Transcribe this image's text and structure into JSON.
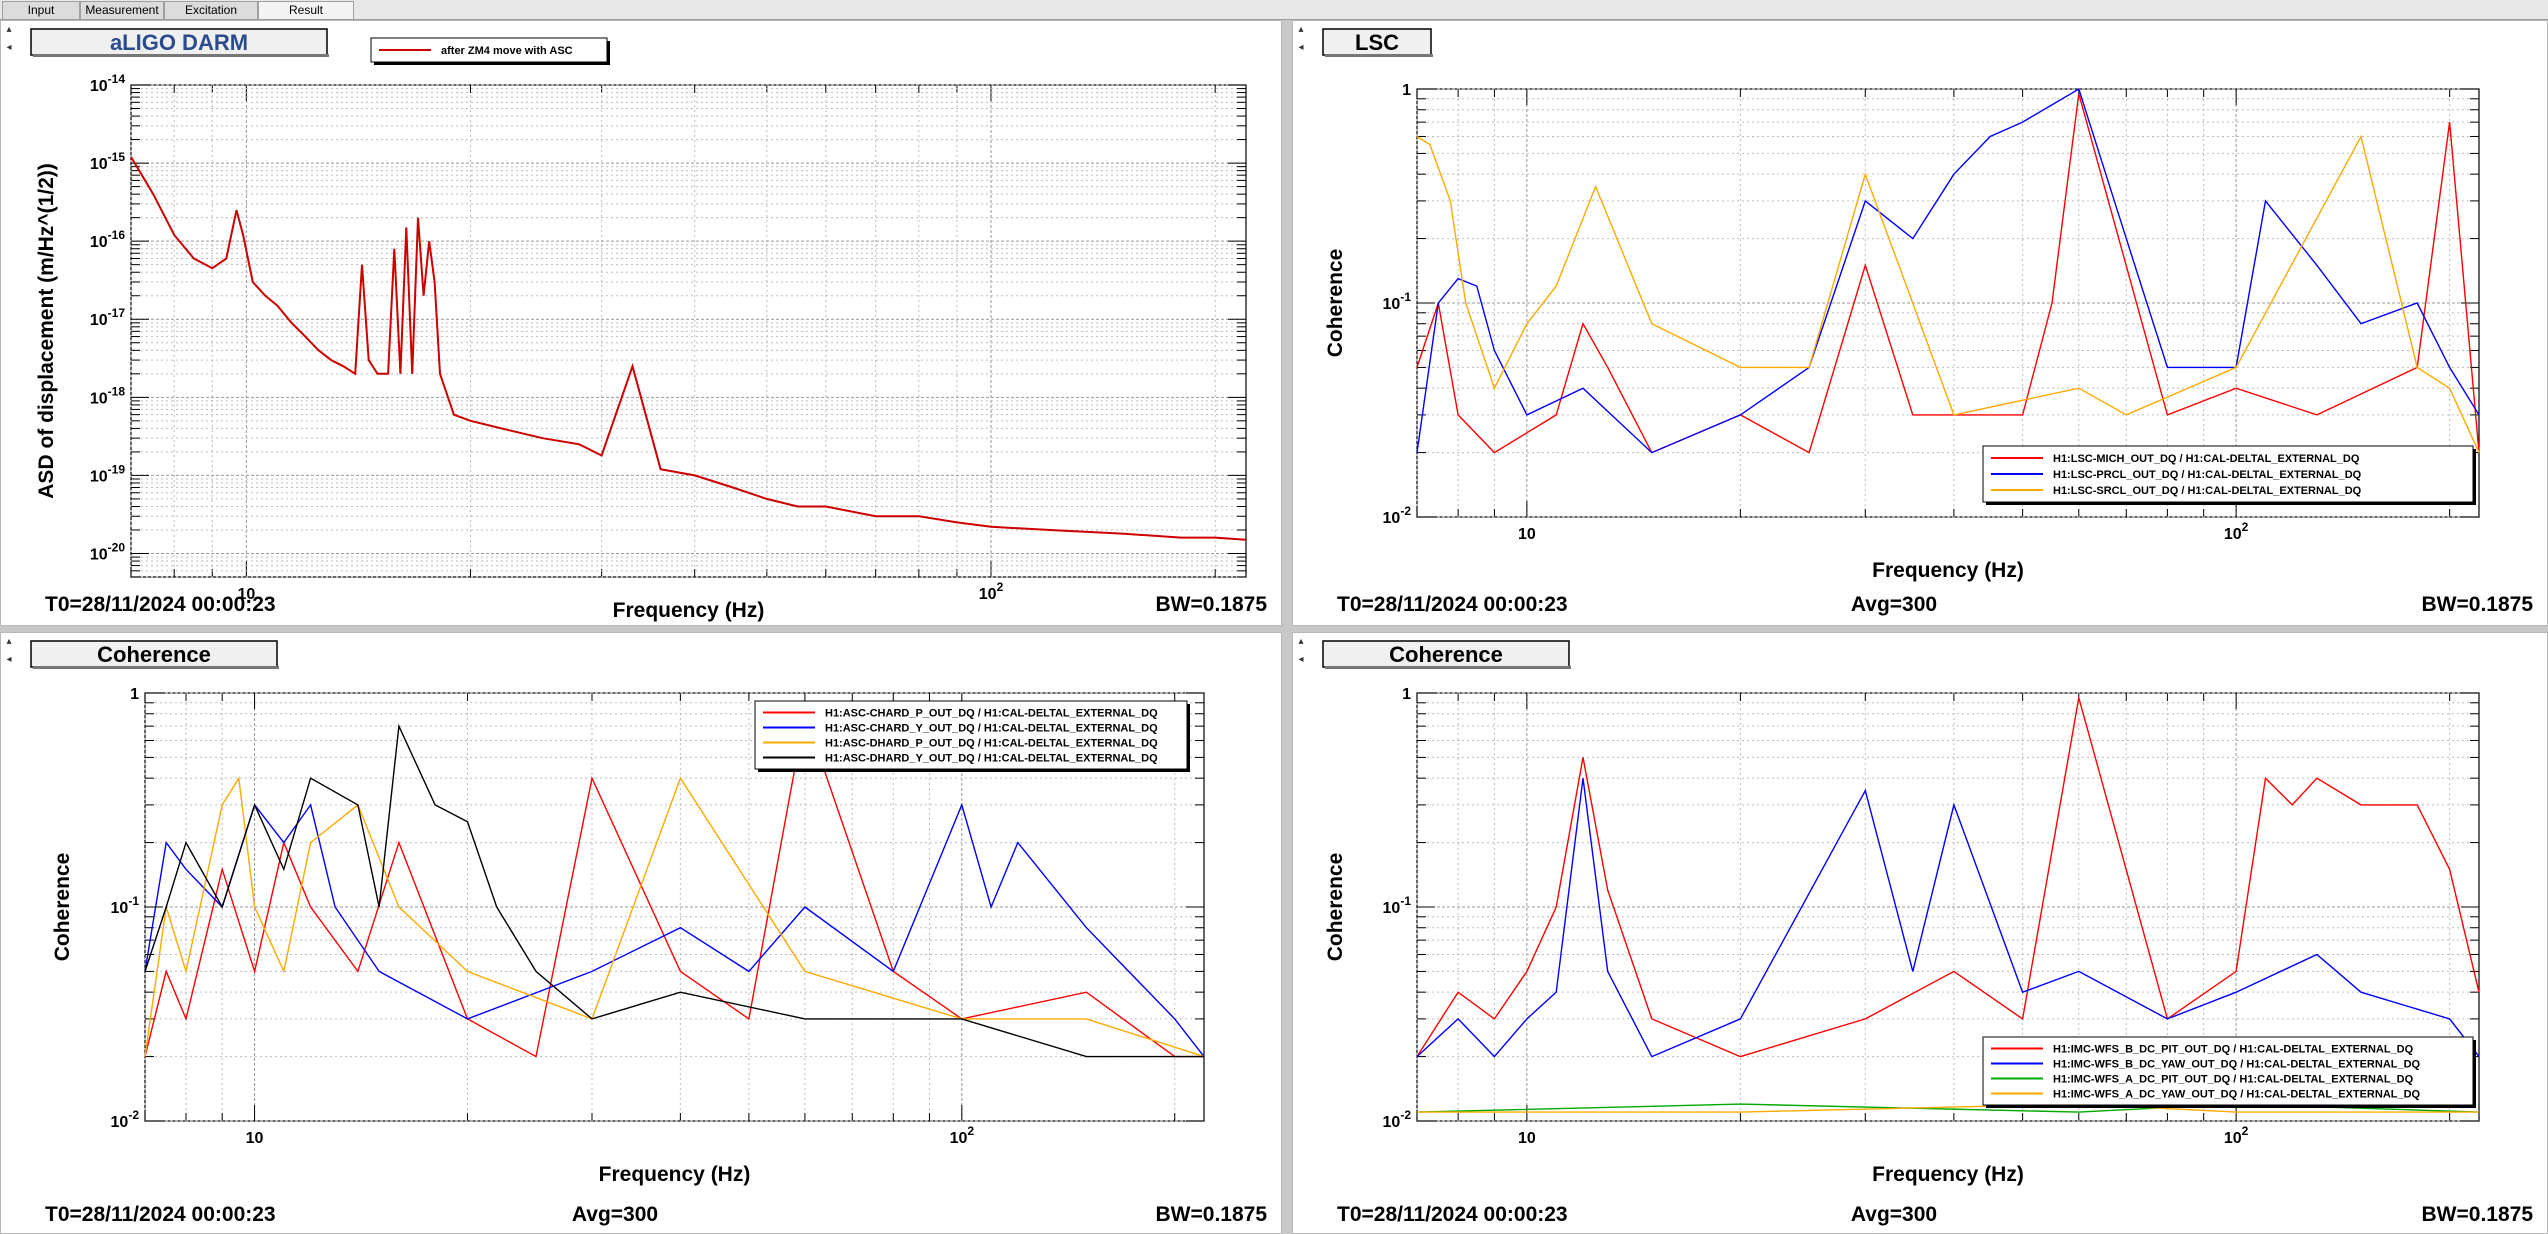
{
  "tabs": [
    {
      "label": "Input"
    },
    {
      "label": "Measurement"
    },
    {
      "label": "Excitation"
    },
    {
      "label": "Result"
    }
  ],
  "colors": {
    "red": "#ff0000",
    "darkred": "#cc0000",
    "blue": "#0000ff",
    "orange": "#ffaa00",
    "black": "#000000",
    "green": "#00aa00",
    "titleblue": "#2c4c8c"
  },
  "panels": [
    {
      "title": "aLIGO DARM",
      "footer": {
        "left": "T0=28/11/2024 00:00:23",
        "center": "",
        "right": "BW=0.1875"
      },
      "chart_data": {
        "type": "line",
        "xlabel": "Frequency (Hz)",
        "ylabel": "ASD of displacement (m/Hz^(1/2))",
        "xscale": "log",
        "yscale": "log",
        "xlim": [
          7,
          220
        ],
        "ylim": [
          5e-21,
          1e-14
        ],
        "xticklabels": [
          "10",
          "10^2"
        ],
        "yticklabels": [
          "10^-20",
          "10^-19",
          "10^-18",
          "10^-17",
          "10^-16",
          "10^-15",
          "10^-14"
        ],
        "grid": true,
        "legend_position": "top",
        "series": [
          {
            "name": "after ZM4 move with ASC",
            "color": "#cc0000",
            "x": [
              7,
              7.5,
              8,
              8.5,
              9,
              9.4,
              9.7,
              9.9,
              10.2,
              10.6,
              11,
              11.5,
              12,
              12.5,
              13,
              13.5,
              14,
              14.3,
              14.6,
              15,
              15.5,
              15.8,
              16.1,
              16.4,
              16.7,
              17,
              17.3,
              17.6,
              17.9,
              18.2,
              19,
              20,
              22,
              25,
              28,
              30,
              33,
              36,
              40,
              45,
              50,
              55,
              60,
              70,
              80,
              90,
              100,
              120,
              150,
              180,
              200,
              220
            ],
            "y": [
              1.2e-15,
              4e-16,
              1.2e-16,
              6e-17,
              4.5e-17,
              6e-17,
              2.5e-16,
              1.2e-16,
              3e-17,
              2e-17,
              1.5e-17,
              9e-18,
              6e-18,
              4e-18,
              3e-18,
              2.5e-18,
              2e-18,
              5e-17,
              3e-18,
              2e-18,
              2e-18,
              8e-17,
              2e-18,
              1.5e-16,
              2e-18,
              2e-16,
              2e-17,
              1e-16,
              3e-17,
              2e-18,
              6e-19,
              5e-19,
              4e-19,
              3e-19,
              2.5e-19,
              1.8e-19,
              2.5e-18,
              1.2e-19,
              1e-19,
              7e-20,
              5e-20,
              4e-20,
              4e-20,
              3e-20,
              3e-20,
              2.5e-20,
              2.2e-20,
              2e-20,
              1.8e-20,
              1.6e-20,
              1.6e-20,
              1.5e-20
            ]
          }
        ]
      }
    },
    {
      "title": "LSC",
      "footer": {
        "left": "T0=28/11/2024 00:00:23",
        "center": "Avg=300",
        "right": "BW=0.1875"
      },
      "chart_data": {
        "type": "line",
        "xlabel": "Frequency (Hz)",
        "ylabel": "Coherence",
        "xscale": "log",
        "yscale": "log",
        "xlim": [
          7,
          220
        ],
        "ylim": [
          0.01,
          1
        ],
        "xticklabels": [
          "10",
          "10^2"
        ],
        "yticklabels": [
          "10^-2",
          "10^-1",
          "1"
        ],
        "grid": true,
        "legend_position": "bottom-right",
        "series": [
          {
            "name": "H1:LSC-MICH_OUT_DQ / H1:CAL-DELTAL_EXTERNAL_DQ",
            "color": "#ff0000",
            "x": [
              7,
              7.5,
              8,
              9,
              11,
              12,
              13,
              15,
              20,
              25,
              30,
              35,
              40,
              50,
              55,
              60,
              80,
              100,
              130,
              180,
              200,
              220
            ],
            "y": [
              0.05,
              0.1,
              0.03,
              0.02,
              0.03,
              0.08,
              0.05,
              0.02,
              0.03,
              0.02,
              0.15,
              0.03,
              0.03,
              0.03,
              0.1,
              0.95,
              0.03,
              0.04,
              0.03,
              0.05,
              0.7,
              0.02
            ]
          },
          {
            "name": "H1:LSC-PRCL_OUT_DQ / H1:CAL-DELTAL_EXTERNAL_DQ",
            "color": "#0000ff",
            "x": [
              7,
              7.5,
              8,
              8.5,
              9,
              10,
              12,
              15,
              20,
              25,
              30,
              35,
              40,
              45,
              50,
              60,
              70,
              80,
              100,
              110,
              130,
              150,
              180,
              200,
              220
            ],
            "y": [
              0.02,
              0.1,
              0.13,
              0.12,
              0.06,
              0.03,
              0.04,
              0.02,
              0.03,
              0.05,
              0.3,
              0.2,
              0.4,
              0.6,
              0.7,
              1.0,
              0.2,
              0.05,
              0.05,
              0.3,
              0.15,
              0.08,
              0.1,
              0.05,
              0.03
            ]
          },
          {
            "name": "H1:LSC-SRCL_OUT_DQ / H1:CAL-DELTAL_EXTERNAL_DQ",
            "color": "#ffaa00",
            "x": [
              7,
              7.3,
              7.8,
              8.2,
              9,
              10,
              11,
              12.5,
              15,
              20,
              25,
              30,
              40,
              60,
              70,
              100,
              150,
              180,
              200,
              220
            ],
            "y": [
              0.6,
              0.55,
              0.3,
              0.1,
              0.04,
              0.08,
              0.12,
              0.35,
              0.08,
              0.05,
              0.05,
              0.4,
              0.03,
              0.04,
              0.03,
              0.05,
              0.6,
              0.05,
              0.04,
              0.02
            ]
          }
        ]
      }
    },
    {
      "title": "Coherence",
      "footer": {
        "left": "T0=28/11/2024 00:00:23",
        "center": "Avg=300",
        "right": "BW=0.1875"
      },
      "chart_data": {
        "type": "line",
        "xlabel": "Frequency (Hz)",
        "ylabel": "Coherence",
        "xscale": "log",
        "yscale": "log",
        "xlim": [
          7,
          220
        ],
        "ylim": [
          0.01,
          1
        ],
        "xticklabels": [
          "10",
          "10^2"
        ],
        "yticklabels": [
          "10^-2",
          "10^-1",
          "1"
        ],
        "grid": true,
        "legend_position": "top-right",
        "series": [
          {
            "name": "H1:ASC-CHARD_P_OUT_DQ / H1:CAL-DELTAL_EXTERNAL_DQ",
            "color": "#ff0000",
            "x": [
              7,
              7.5,
              8,
              9,
              10,
              11,
              12,
              14,
              16,
              20,
              25,
              30,
              40,
              50,
              60,
              80,
              100,
              150,
              200,
              220
            ],
            "y": [
              0.02,
              0.05,
              0.03,
              0.15,
              0.05,
              0.2,
              0.1,
              0.05,
              0.2,
              0.03,
              0.02,
              0.4,
              0.05,
              0.03,
              0.8,
              0.05,
              0.03,
              0.04,
              0.02,
              0.02
            ]
          },
          {
            "name": "H1:ASC-CHARD_Y_OUT_DQ / H1:CAL-DELTAL_EXTERNAL_DQ",
            "color": "#0000ff",
            "x": [
              7,
              7.5,
              8,
              9,
              10,
              11,
              12,
              13,
              15,
              20,
              30,
              40,
              50,
              60,
              80,
              100,
              110,
              120,
              150,
              200,
              220
            ],
            "y": [
              0.05,
              0.2,
              0.15,
              0.1,
              0.3,
              0.2,
              0.3,
              0.1,
              0.05,
              0.03,
              0.05,
              0.08,
              0.05,
              0.1,
              0.05,
              0.3,
              0.1,
              0.2,
              0.08,
              0.03,
              0.02
            ]
          },
          {
            "name": "H1:ASC-DHARD_P_OUT_DQ / H1:CAL-DELTAL_EXTERNAL_DQ",
            "color": "#ffaa00",
            "x": [
              7,
              7.5,
              8,
              9,
              9.5,
              10,
              11,
              12,
              14,
              16,
              20,
              30,
              40,
              60,
              100,
              150,
              220
            ],
            "y": [
              0.02,
              0.1,
              0.05,
              0.3,
              0.4,
              0.1,
              0.05,
              0.2,
              0.3,
              0.1,
              0.05,
              0.03,
              0.4,
              0.05,
              0.03,
              0.03,
              0.02
            ]
          },
          {
            "name": "H1:ASC-DHARD_Y_OUT_DQ / H1:CAL-DELTAL_EXTERNAL_DQ",
            "color": "#000000",
            "x": [
              7,
              7.5,
              8,
              9,
              10,
              11,
              12,
              14,
              15,
              16,
              18,
              20,
              22,
              25,
              30,
              40,
              60,
              100,
              150,
              220
            ],
            "y": [
              0.05,
              0.1,
              0.2,
              0.1,
              0.3,
              0.15,
              0.4,
              0.3,
              0.1,
              0.7,
              0.3,
              0.25,
              0.1,
              0.05,
              0.03,
              0.04,
              0.03,
              0.03,
              0.02,
              0.02
            ]
          }
        ]
      }
    },
    {
      "title": "Coherence",
      "footer": {
        "left": "T0=28/11/2024 00:00:23",
        "center": "Avg=300",
        "right": "BW=0.1875"
      },
      "chart_data": {
        "type": "line",
        "xlabel": "Frequency (Hz)",
        "ylabel": "Coherence",
        "xscale": "log",
        "yscale": "log",
        "xlim": [
          7,
          220
        ],
        "ylim": [
          0.01,
          1
        ],
        "xticklabels": [
          "10",
          "10^2"
        ],
        "yticklabels": [
          "10^-2",
          "10^-1",
          "1"
        ],
        "grid": true,
        "legend_position": "bottom-right",
        "series": [
          {
            "name": "H1:IMC-WFS_B_DC_PIT_OUT_DQ / H1:CAL-DELTAL_EXTERNAL_DQ",
            "color": "#ff0000",
            "x": [
              7,
              8,
              9,
              10,
              11,
              12,
              13,
              15,
              20,
              30,
              40,
              50,
              60,
              80,
              100,
              110,
              120,
              130,
              150,
              180,
              200,
              220
            ],
            "y": [
              0.02,
              0.04,
              0.03,
              0.05,
              0.1,
              0.5,
              0.12,
              0.03,
              0.02,
              0.03,
              0.05,
              0.03,
              0.95,
              0.03,
              0.05,
              0.4,
              0.3,
              0.4,
              0.3,
              0.3,
              0.15,
              0.04
            ]
          },
          {
            "name": "H1:IMC-WFS_B_DC_YAW_OUT_DQ / H1:CAL-DELTAL_EXTERNAL_DQ",
            "color": "#0000ff",
            "x": [
              7,
              8,
              9,
              10,
              11,
              12,
              13,
              15,
              20,
              30,
              35,
              40,
              50,
              60,
              80,
              100,
              130,
              150,
              200,
              220
            ],
            "y": [
              0.02,
              0.03,
              0.02,
              0.03,
              0.04,
              0.4,
              0.05,
              0.02,
              0.03,
              0.35,
              0.05,
              0.3,
              0.04,
              0.05,
              0.03,
              0.04,
              0.06,
              0.04,
              0.03,
              0.02
            ]
          },
          {
            "name": "H1:IMC-WFS_A_DC_PIT_OUT_DQ / H1:CAL-DELTAL_EXTERNAL_DQ",
            "color": "#00aa00",
            "x": [
              7,
              20,
              60,
              100,
              220
            ],
            "y": [
              0.011,
              0.012,
              0.011,
              0.012,
              0.011
            ]
          },
          {
            "name": "H1:IMC-WFS_A_DC_YAW_OUT_DQ / H1:CAL-DELTAL_EXTERNAL_DQ",
            "color": "#ffaa00",
            "x": [
              7,
              20,
              60,
              100,
              220
            ],
            "y": [
              0.011,
              0.011,
              0.012,
              0.011,
              0.011
            ]
          }
        ]
      }
    }
  ]
}
